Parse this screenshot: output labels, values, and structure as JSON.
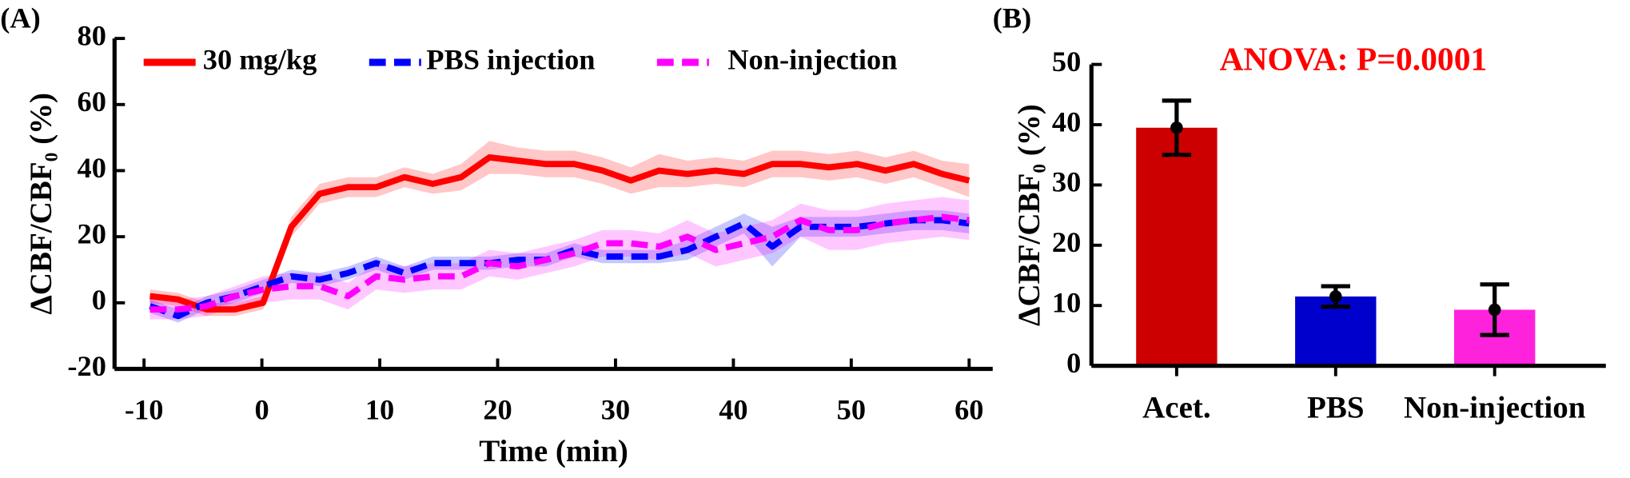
{
  "chart_data": [
    {
      "type": "line",
      "panel_label": "(A)",
      "x_label": "Time (min)",
      "y_label": "ΔCBF/CBF₀ (%)",
      "x": [
        -9.5,
        -7.1,
        -4.7,
        -2.3,
        0.1,
        2.5,
        4.9,
        7.3,
        9.7,
        12.1,
        14.5,
        16.9,
        19.3,
        21.7,
        24.1,
        26.5,
        28.9,
        31.3,
        33.7,
        36.1,
        38.5,
        40.9,
        43.3,
        45.7,
        48.1,
        50.5,
        52.9,
        55.3,
        57.7,
        60
      ],
      "series": [
        {
          "name": "30 mg/kg",
          "color": "#ff0000",
          "style": "solid",
          "values": [
            2,
            1,
            -2,
            -2,
            0,
            23,
            33,
            35,
            35,
            38,
            36,
            38,
            44,
            43,
            42,
            42,
            40,
            37,
            40,
            39,
            40,
            39,
            42,
            42,
            41,
            42,
            40,
            42,
            39,
            37
          ],
          "errors": [
            2,
            2,
            2,
            2,
            2,
            3,
            3,
            3,
            3,
            3,
            3,
            4,
            5,
            4,
            4,
            4,
            4,
            4,
            5,
            4,
            4,
            4,
            4,
            4,
            4,
            4,
            4,
            4,
            4,
            5
          ]
        },
        {
          "name": "PBS injection",
          "color": "#0000ff",
          "style": "dashed",
          "values": [
            -1,
            -4,
            0,
            2,
            5,
            8,
            7,
            9,
            12,
            9,
            12,
            12,
            12,
            13,
            13,
            16,
            14,
            14,
            14,
            16,
            20,
            24,
            17,
            23,
            23,
            23,
            24,
            25,
            25,
            24
          ],
          "errors": [
            2,
            2,
            2,
            2,
            2,
            2,
            2,
            2,
            2,
            2,
            2,
            2,
            2,
            2,
            2,
            2,
            2,
            2,
            2,
            3,
            3,
            3,
            6,
            3,
            3,
            3,
            3,
            3,
            3,
            3
          ]
        },
        {
          "name": "Non-injection",
          "color": "#ff00ff",
          "style": "dashed",
          "values": [
            -2,
            -2,
            -1,
            2,
            4,
            5,
            5,
            2,
            8,
            7,
            8,
            8,
            12,
            11,
            13,
            15,
            18,
            18,
            17,
            20,
            16,
            18,
            20,
            25,
            22,
            22,
            24,
            25,
            26,
            25
          ],
          "errors": [
            3,
            3,
            3,
            3,
            4,
            4,
            4,
            4,
            4,
            4,
            4,
            4,
            4,
            4,
            4,
            4,
            4,
            4,
            4,
            5,
            5,
            5,
            5,
            5,
            6,
            6,
            6,
            6,
            6,
            6
          ]
        }
      ],
      "xlim": [
        -12.5,
        62
      ],
      "ylim": [
        -20,
        80
      ],
      "xticks": [
        -10,
        0,
        10,
        20,
        30,
        40,
        50,
        60
      ],
      "yticks": [
        -20,
        0,
        20,
        40,
        60,
        80
      ]
    },
    {
      "type": "bar",
      "panel_label": "(B)",
      "annotation": "ANOVA: P=0.0001",
      "annotation_color": "#ff0000",
      "y_label": "ΔCBF/CBF₀ (%)",
      "categories": [
        "Acet.",
        "PBS",
        "Non-injection"
      ],
      "values": [
        39.5,
        11.5,
        9.3
      ],
      "errors": [
        4.5,
        1.7,
        4.2
      ],
      "colors": [
        "#cc0000",
        "#0000cc",
        "#ff22dd"
      ],
      "ylim": [
        0,
        50
      ],
      "yticks": [
        0,
        10,
        20,
        30,
        40,
        50
      ]
    }
  ]
}
